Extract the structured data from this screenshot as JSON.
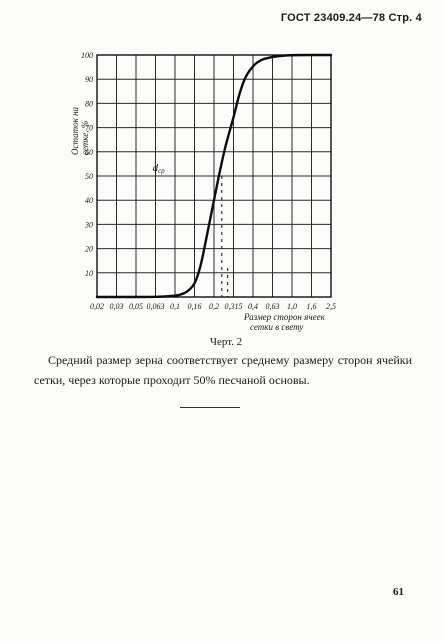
{
  "header": {
    "text": "ГОСТ 23409.24—78 Стр. 4"
  },
  "caption": "Черт. 2",
  "body_text": "Средний размер зерна соответствует среднему размеру сторон ячейки сетки, через которые проходит 50% песчаной основы.",
  "page_number": "61",
  "chart_data": {
    "type": "line",
    "title": "",
    "ylabel_lines": [
      "Остаток на",
      "сетке, %"
    ],
    "xlabel_lines": [
      "Размер сторон ячеек",
      "сетки в свету"
    ],
    "annotation": "d",
    "annotation_sub": "ср",
    "x_tick_labels": [
      "0,02",
      "0,03",
      "0,05",
      "0,063",
      "0,1",
      "0,16",
      "0,2",
      "0,315",
      "0,4",
      "0,63",
      "1,0",
      "1,6",
      "2,5"
    ],
    "y_tick_labels": [
      "10",
      "20",
      "30",
      "40",
      "50",
      "60",
      "70",
      "80",
      "90",
      "100"
    ],
    "ylim": [
      0,
      100
    ],
    "grid": true,
    "series": [
      {
        "x_index": [
          0,
          3,
          4,
          4.3,
          4.6,
          5,
          5.3,
          5.6,
          6,
          6.3,
          6.6,
          7,
          7.3,
          7.6,
          8,
          8.3,
          8.6,
          9,
          9.5,
          10,
          12
        ],
        "y": [
          0,
          0,
          0.5,
          1,
          2,
          5,
          12,
          24,
          40,
          52,
          63,
          74,
          84,
          91,
          95.5,
          97.5,
          98.5,
          99.2,
          99.7,
          100,
          100
        ]
      }
    ],
    "markers": [
      {
        "x_index": 6.4,
        "y": 50,
        "style": "dashed-vertical"
      },
      {
        "x_index": 6.7,
        "y": 12,
        "style": "dashed-vertical"
      }
    ]
  }
}
